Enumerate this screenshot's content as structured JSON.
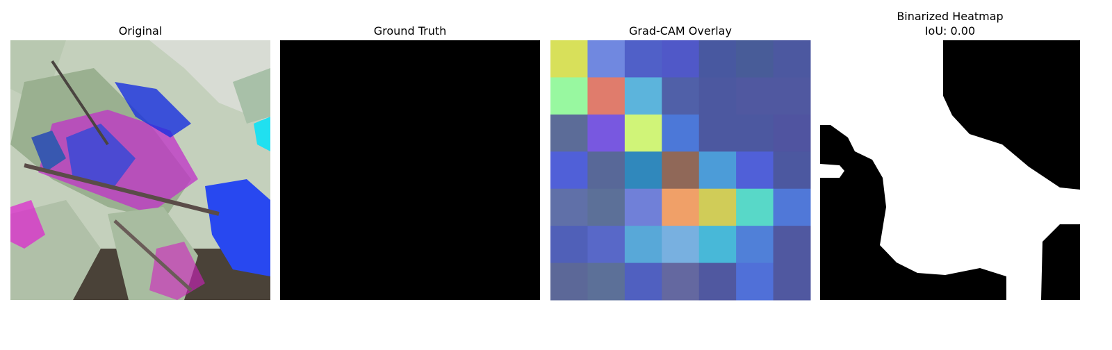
{
  "panels": [
    {
      "title": "Original"
    },
    {
      "title": "Ground Truth"
    },
    {
      "title": "Grad-CAM Overlay"
    },
    {
      "title": "Binarized Heatmap",
      "metric": "IoU: 0.00"
    }
  ]
}
